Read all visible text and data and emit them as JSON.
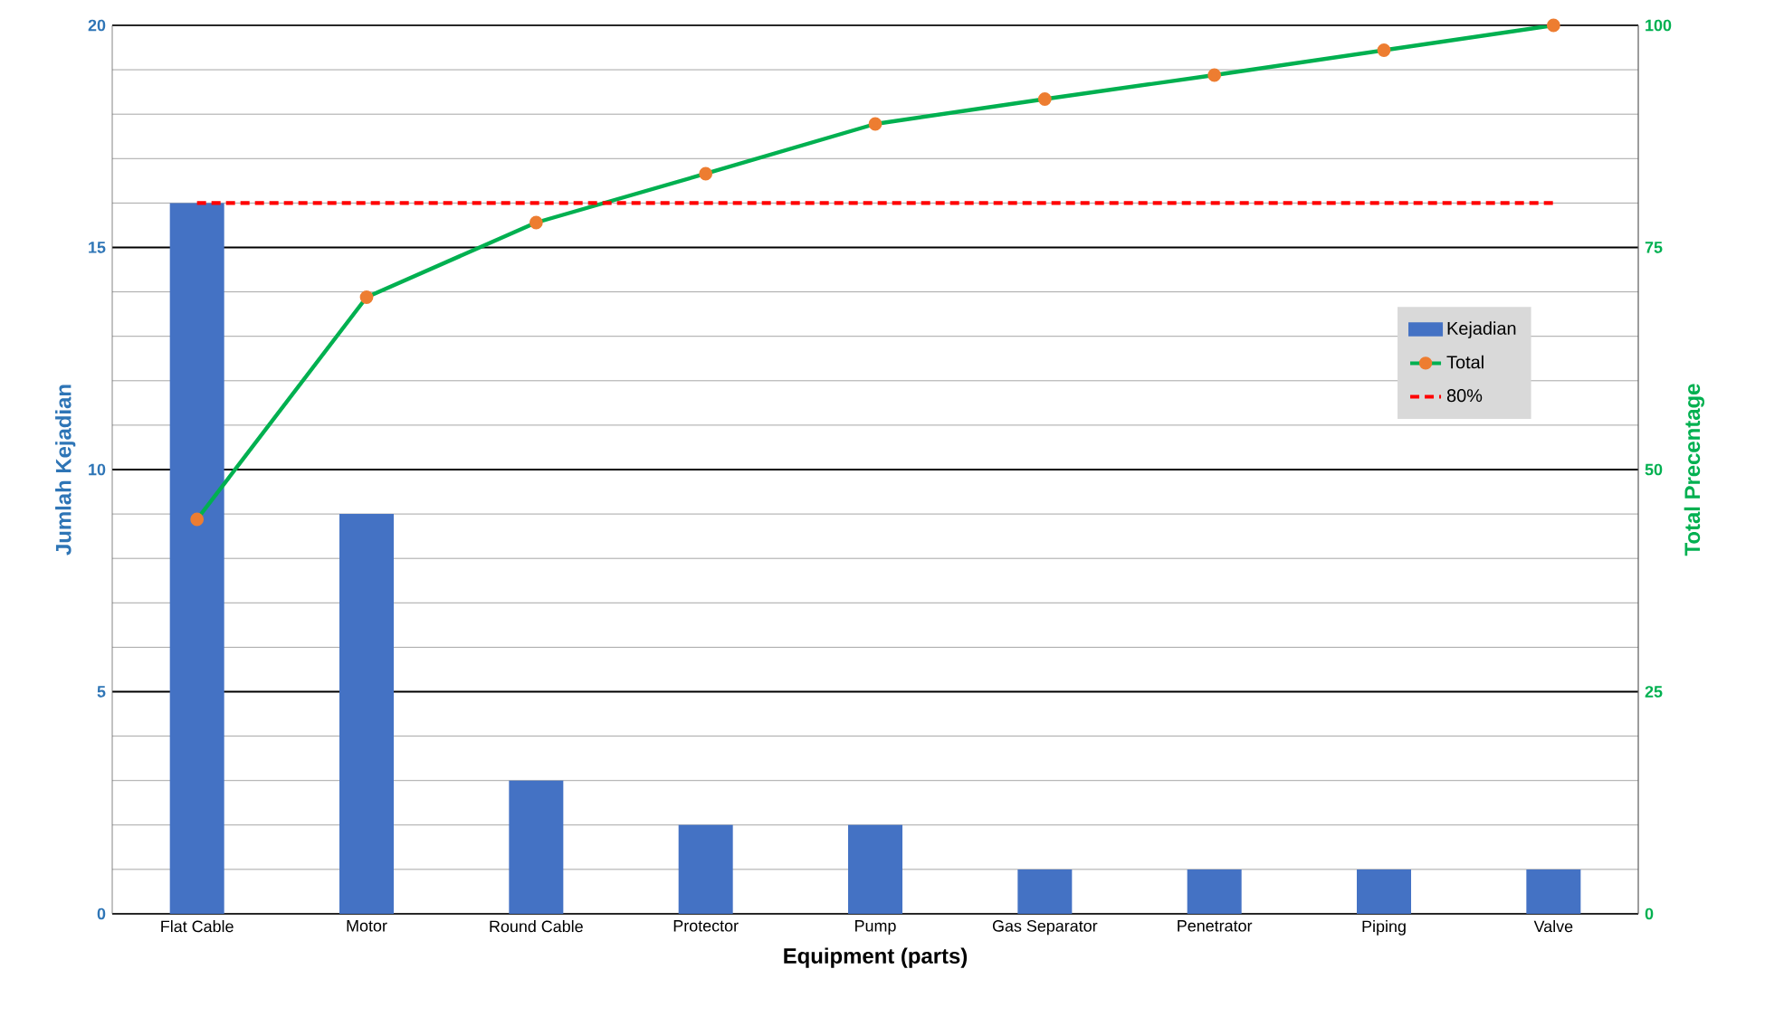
{
  "chart_data": {
    "type": "bar",
    "xlabel": "Equipment (parts)",
    "ylabel": "Jumlah Kejadian",
    "y2label": "Total Precentage",
    "categories": [
      "Flat Cable",
      "Motor",
      "Round Cable",
      "Protector",
      "Pump",
      "Gas Separator",
      "Penetrator",
      "Piping",
      "Valve"
    ],
    "series": [
      {
        "name": "Kejadian",
        "color": "#4472c4",
        "values": [
          16,
          9,
          3,
          2,
          2,
          1,
          1,
          1,
          1
        ]
      },
      {
        "name": "Total",
        "type": "line",
        "axis": "y2",
        "color": "#00b050",
        "marker": "circle",
        "values": [
          44.4,
          69.4,
          77.8,
          83.3,
          88.9,
          91.7,
          94.4,
          97.2,
          100
        ]
      }
    ],
    "ref_lines": [
      {
        "axis": "y2",
        "value": 80,
        "label": "80%",
        "color": "#ff0000",
        "line_style": "dashed"
      }
    ],
    "ylim": [
      0,
      20
    ],
    "yticks": [
      0,
      5,
      10,
      15,
      20
    ],
    "y2lim": [
      0,
      100
    ],
    "y2ticks": [
      0,
      25,
      50,
      75,
      100
    ],
    "grid": "y",
    "legend": "right"
  }
}
